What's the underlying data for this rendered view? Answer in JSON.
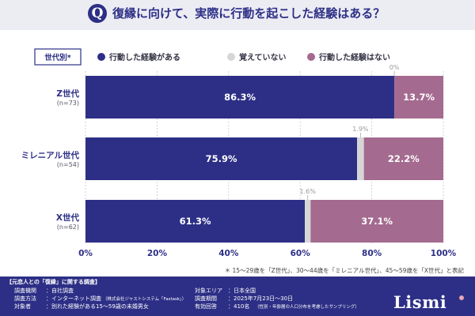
{
  "header": {
    "q_mark": "Q",
    "title": "復縁に向けて、実際に行動を起こした経験はある？"
  },
  "chart_data": {
    "type": "bar",
    "orientation": "horizontal",
    "stacked": true,
    "title": "復縁に向けて、実際に行動を起こした経験はある？",
    "legend_label": "世代別*",
    "legend_position": "top",
    "categories": [
      {
        "name": "Z世代",
        "n": "(n=73)"
      },
      {
        "name": "ミレニアル世代",
        "n": "(n=54)"
      },
      {
        "name": "X世代",
        "n": "(n=62)"
      }
    ],
    "series": [
      {
        "name": "行動した経験がある",
        "color": "#2d2f86",
        "values": [
          86.3,
          75.9,
          61.3
        ],
        "labels": [
          "86.3%",
          "75.9%",
          "61.3%"
        ]
      },
      {
        "name": "覚えていない",
        "color": "#d6d6d6",
        "values": [
          0.0,
          1.9,
          1.6
        ],
        "labels": [
          "0%",
          "1.9%",
          "1.6%"
        ]
      },
      {
        "name": "行動した経験はない",
        "color": "#a46a8f",
        "values": [
          13.7,
          22.2,
          37.1
        ],
        "labels": [
          "13.7%",
          "22.2%",
          "37.1%"
        ]
      }
    ],
    "xlim": [
      0,
      100
    ],
    "xticks": [
      "0%",
      "20%",
      "40%",
      "60%",
      "80%",
      "100%"
    ],
    "gridlines": true,
    "note": "＊ 15～29歳を「Z世代」、30～44歳を「ミレニアル世代」、45～59歳を「X世代」と表記"
  },
  "footer": {
    "survey_title": "【元恋人との「復縁」に関する調査】",
    "rows": [
      {
        "label": "調査機関",
        "value": "：自社調査"
      },
      {
        "label": "調査方法",
        "value": "：インターネット調査",
        "small": "（株式会社ジャストシステム「Fastask」）"
      },
      {
        "label": "対象者",
        "value": "：別れた経験がある15～59歳の未婚男女"
      },
      {
        "label": "対象エリア",
        "value": "：日本全国"
      },
      {
        "label": "調査期間",
        "value": "：2025年7月23日～30日"
      },
      {
        "label": "有効回答",
        "value": "：410名",
        "small": "（性別・年齢層の人口分布を考慮したサンプリング）"
      }
    ],
    "logo": "Lismi"
  },
  "colors": {
    "navy": "#2d2f86",
    "gray": "#d6d6d6",
    "mauve": "#a46a8f",
    "header_bg": "#ececf3"
  }
}
